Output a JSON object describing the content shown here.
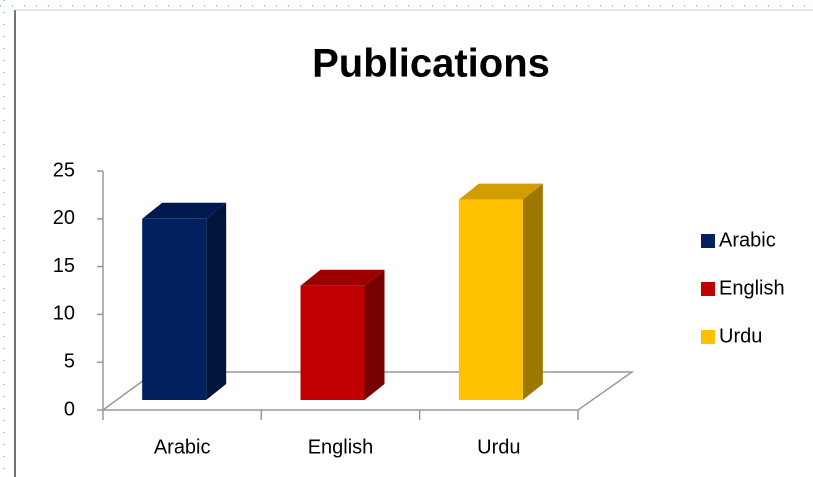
{
  "chart_data": {
    "type": "bar3d",
    "title": "Publications",
    "categories": [
      "Arabic",
      "English",
      "Urdu"
    ],
    "values": [
      20,
      13,
      22
    ],
    "colors": [
      "#002060",
      "#c00000",
      "#ffc000"
    ],
    "ylim": [
      0,
      25
    ],
    "yticks": [
      0,
      5,
      10,
      15,
      20,
      25
    ],
    "legend": "right"
  }
}
